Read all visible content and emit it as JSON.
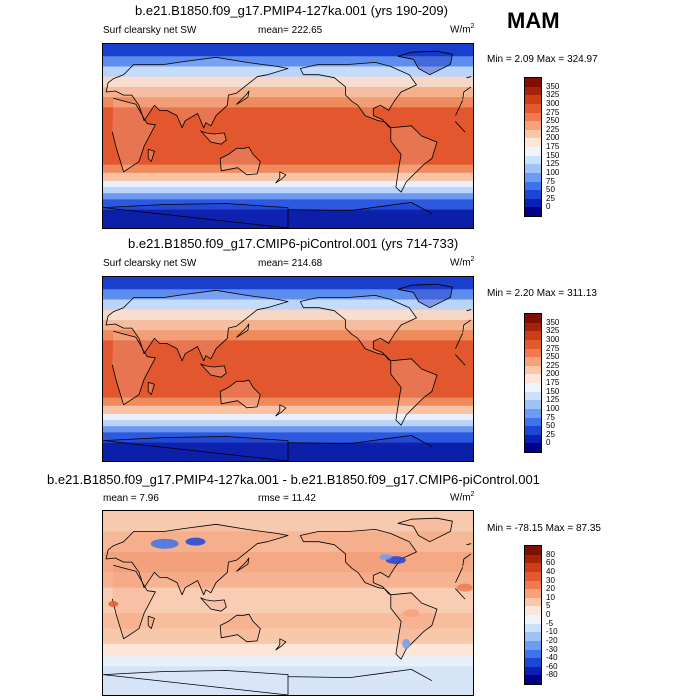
{
  "season": "MAM",
  "colors": {
    "scale_abs": [
      "#00008b",
      "#0a1fb4",
      "#1c46d6",
      "#3c72ea",
      "#6e9cf2",
      "#9fc2f7",
      "#cbe0fb",
      "#eef3fc",
      "#fde6d8",
      "#fbc7a9",
      "#f7a27a",
      "#ef7a4f",
      "#e45a2f",
      "#cc3d18",
      "#a52409",
      "#7f0f03"
    ],
    "scale_diff": [
      "#00008b",
      "#0a1fb4",
      "#1c46d6",
      "#3c72ea",
      "#6e9cf2",
      "#9fc2f7",
      "#cbe0fb",
      "#eef3fc",
      "#fde6d8",
      "#fbc7a9",
      "#f7a27a",
      "#ef7a4f",
      "#e45a2f",
      "#cc3d18",
      "#a52409",
      "#7f0f03"
    ]
  },
  "chart_data": [
    {
      "type": "heatmap",
      "title": "b.e21.B1850.f09_g17.PMIP4-127ka.001 (yrs 190-209)",
      "variable": "Surf clearsky net SW",
      "mean_label": "mean=",
      "mean": "222.65",
      "units": "W/m",
      "units_exp": "2",
      "min_label": "Min =",
      "min": "2.09",
      "max_label": "Max =",
      "max": "324.97",
      "colorbar_levels": [
        "350",
        "325",
        "300",
        "275",
        "250",
        "225",
        "200",
        "175",
        "150",
        "125",
        "100",
        "75",
        "50",
        "25",
        "0"
      ]
    },
    {
      "type": "heatmap",
      "title": "b.e21.B1850.f09_g17.CMIP6-piControl.001 (yrs 714-733)",
      "variable": "Surf clearsky net SW",
      "mean_label": "mean=",
      "mean": "214.68",
      "units": "W/m",
      "units_exp": "2",
      "min_label": "Min =",
      "min": "2.20",
      "max_label": "Max =",
      "max": "311.13",
      "colorbar_levels": [
        "350",
        "325",
        "300",
        "275",
        "250",
        "225",
        "200",
        "175",
        "150",
        "125",
        "100",
        "75",
        "50",
        "25",
        "0"
      ]
    },
    {
      "type": "heatmap",
      "title": "b.e21.B1850.f09_g17.PMIP4-127ka.001 - b.e21.B1850.f09_g17.CMIP6-piControl.001",
      "variable": "",
      "mean_label": "mean =",
      "mean": "7.96",
      "rmse_label": "rmse =",
      "rmse": "11.42",
      "units": "W/m",
      "units_exp": "2",
      "min_label": "Min =",
      "min": "-78.15",
      "max_label": "Max =",
      "max": "87.35",
      "colorbar_levels": [
        "80",
        "60",
        "40",
        "30",
        "20",
        "10",
        "5",
        "0",
        "-5",
        "-10",
        "-20",
        "-30",
        "-40",
        "-60",
        "-80"
      ]
    }
  ]
}
